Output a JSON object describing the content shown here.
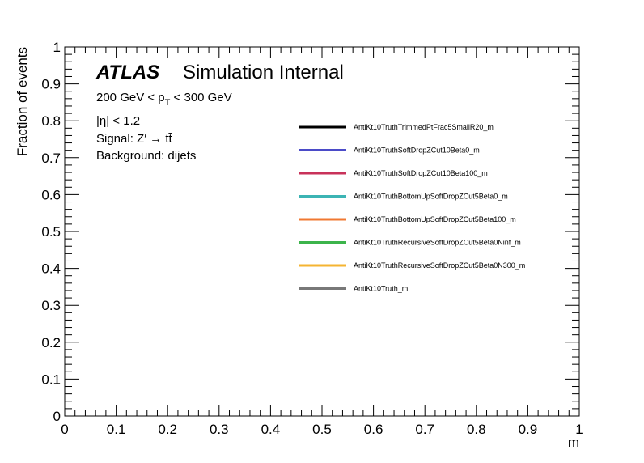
{
  "chart_data": {
    "type": "line",
    "xlabel": "m",
    "ylabel": "Fraction of events",
    "xlim": [
      0,
      1
    ],
    "ylim": [
      0,
      1
    ],
    "x_major_ticks": [
      0,
      0.1,
      0.2,
      0.3,
      0.4,
      0.5,
      0.6,
      0.7,
      0.8,
      0.9,
      1
    ],
    "x_tick_labels": [
      "0",
      "0.1",
      "0.2",
      "0.3",
      "0.4",
      "0.5",
      "0.6",
      "0.7",
      "0.8",
      "0.9",
      "1"
    ],
    "y_major_ticks": [
      0,
      0.1,
      0.2,
      0.3,
      0.4,
      0.5,
      0.6,
      0.7,
      0.8,
      0.9,
      1
    ],
    "y_tick_labels": [
      "0",
      "0.1",
      "0.2",
      "0.3",
      "0.4",
      "0.5",
      "0.6",
      "0.7",
      "0.8",
      "0.9",
      "1"
    ],
    "grid": false,
    "legend_position": "upper-right",
    "atlas_label": "ATLAS",
    "atlas_sublabel": "Simulation Internal",
    "annotations": {
      "pt_prefix": "200 GeV < p",
      "pt_sub": "T",
      "pt_suffix": " < 300 GeV",
      "eta": "|η| < 1.2",
      "signal": "Signal: Z′ → tt̄",
      "background": "Background: dijets"
    },
    "series": [
      {
        "name": "AntiKt10TruthTrimmedPtFrac5SmallR20_m",
        "color": "#000000",
        "values": []
      },
      {
        "name": "AntiKt10TruthSoftDropZCut10Beta0_m",
        "color": "#4b4bc8",
        "values": []
      },
      {
        "name": "AntiKt10TruthSoftDropZCut10Beta100_m",
        "color": "#c8325a",
        "values": []
      },
      {
        "name": "AntiKt10TruthBottomUpSoftDropZCut5Beta0_m",
        "color": "#3cb4b4",
        "values": []
      },
      {
        "name": "AntiKt10TruthBottomUpSoftDropZCut5Beta100_m",
        "color": "#f07832",
        "values": []
      },
      {
        "name": "AntiKt10TruthRecursiveSoftDropZCut5Beta0Ninf_m",
        "color": "#3cb44b",
        "values": []
      },
      {
        "name": "AntiKt10TruthRecursiveSoftDropZCut5Beta0N300_m",
        "color": "#f5b432",
        "values": []
      },
      {
        "name": "AntiKt10Truth_m",
        "color": "#787878",
        "values": []
      }
    ]
  }
}
